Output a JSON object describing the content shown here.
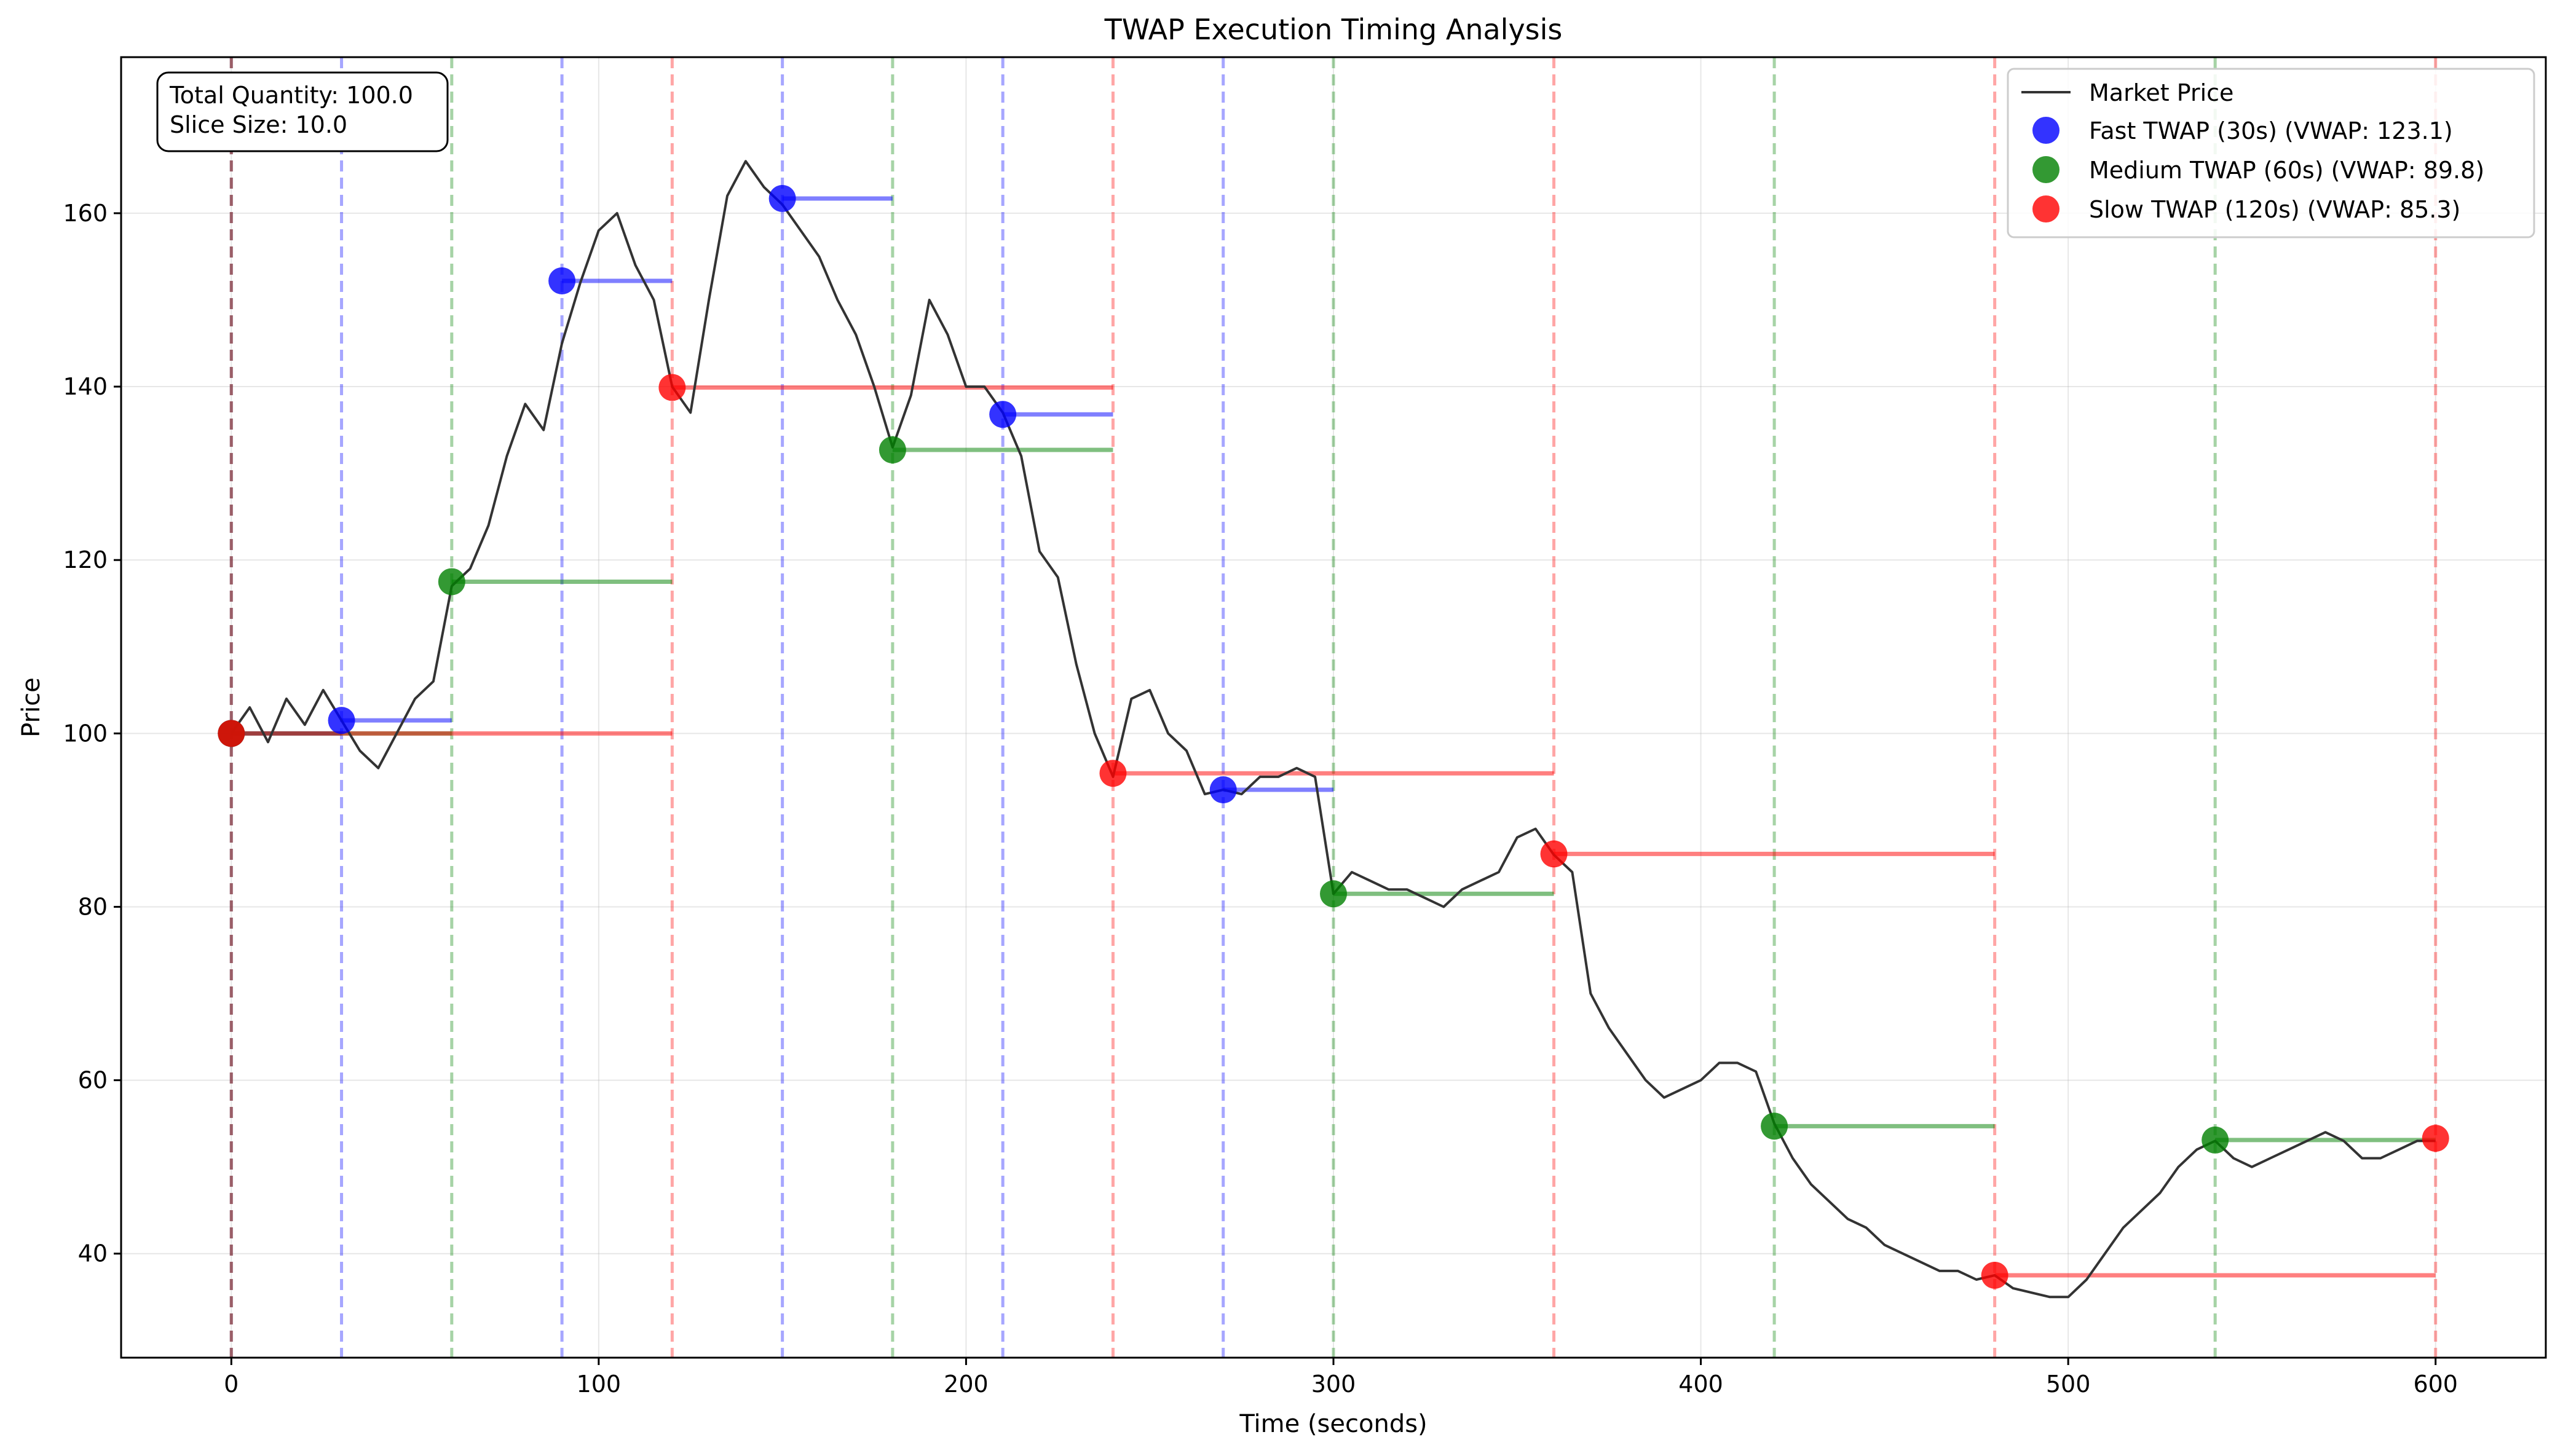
{
  "chart_data": {
    "type": "line",
    "title": "TWAP Execution Timing Analysis",
    "xlabel": "Time (seconds)",
    "ylabel": "Price",
    "xlim": [
      -30,
      630
    ],
    "ylim": [
      28,
      178
    ],
    "xticks": [
      0,
      100,
      200,
      300,
      400,
      500,
      600
    ],
    "yticks": [
      40,
      60,
      80,
      100,
      120,
      140,
      160
    ],
    "grid": true,
    "legend_position": "top-right",
    "annotation": [
      "Total Quantity: 100.0",
      "Slice Size: 10.0"
    ],
    "market_price": {
      "name": "Market Price",
      "color": "#333333",
      "x": [
        0,
        5,
        10,
        15,
        20,
        25,
        30,
        35,
        40,
        45,
        50,
        55,
        60,
        65,
        70,
        75,
        80,
        85,
        90,
        95,
        100,
        105,
        110,
        115,
        120,
        125,
        130,
        135,
        140,
        145,
        150,
        155,
        160,
        165,
        170,
        175,
        180,
        185,
        190,
        195,
        200,
        205,
        210,
        215,
        220,
        225,
        230,
        235,
        240,
        245,
        250,
        255,
        260,
        265,
        270,
        275,
        280,
        285,
        290,
        295,
        300,
        305,
        310,
        315,
        320,
        325,
        330,
        335,
        340,
        345,
        350,
        355,
        360,
        365,
        370,
        375,
        380,
        385,
        390,
        395,
        400,
        405,
        410,
        415,
        420,
        425,
        430,
        435,
        440,
        445,
        450,
        455,
        460,
        465,
        470,
        475,
        480,
        485,
        490,
        495,
        500,
        505,
        510,
        515,
        520,
        525,
        530,
        535,
        540,
        545,
        550,
        555,
        560,
        565,
        570,
        575,
        580,
        585,
        590,
        595,
        600
      ],
      "y": [
        100,
        103,
        99,
        104,
        101,
        105,
        101.5,
        98,
        96,
        100,
        104,
        106,
        117,
        119,
        124,
        132,
        138,
        135,
        145,
        152,
        158,
        160,
        154,
        150,
        140,
        137,
        150,
        162,
        166,
        163,
        161,
        158,
        155,
        150,
        146,
        140,
        133,
        139,
        150,
        146,
        140,
        140,
        137,
        132,
        121,
        118,
        108,
        100,
        95,
        104,
        105,
        100,
        98,
        93,
        93.5,
        93,
        95,
        95,
        96,
        95,
        81.5,
        84,
        83,
        82,
        82,
        81,
        80,
        82,
        83,
        84,
        88,
        89,
        86,
        84,
        70,
        66,
        63,
        60,
        58,
        59,
        60,
        62,
        62,
        61,
        55,
        51,
        48,
        46,
        44,
        43,
        41,
        40,
        39,
        38,
        38,
        37,
        37.5,
        36,
        35.5,
        35,
        35,
        37,
        40,
        43,
        45,
        47,
        50,
        52,
        53,
        51,
        50,
        51,
        52,
        53,
        54,
        53,
        51,
        51,
        52,
        53,
        53
      ]
    },
    "series": [
      {
        "name": "Fast TWAP (30s) (VWAP: 123.1)",
        "color": "#0000ff",
        "interval": 30,
        "x": [
          0,
          30,
          90,
          150,
          210,
          270
        ],
        "y": [
          100.0,
          101.5,
          152.2,
          161.7,
          136.8,
          93.5
        ]
      },
      {
        "name": "Medium TWAP (60s) (VWAP: 89.8)",
        "color": "#008000",
        "interval": 60,
        "x": [
          0,
          60,
          180,
          300,
          420,
          540
        ],
        "y": [
          100.0,
          117.5,
          132.7,
          81.5,
          54.7,
          53.1
        ]
      },
      {
        "name": "Slow TWAP (120s) (VWAP: 85.3)",
        "color": "#ff0000",
        "interval": 120,
        "x": [
          0,
          120,
          240,
          360,
          480,
          600
        ],
        "y": [
          100.0,
          139.9,
          95.4,
          86.1,
          37.5,
          53.3
        ]
      }
    ]
  }
}
